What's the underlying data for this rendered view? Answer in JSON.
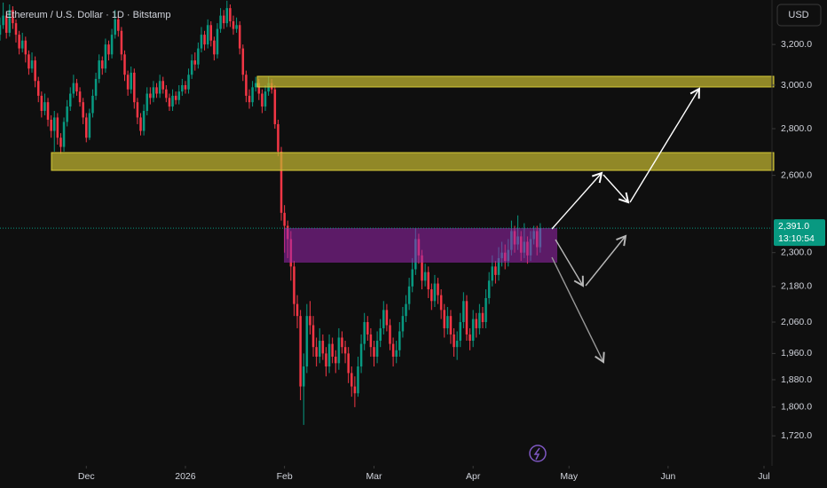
{
  "chart_data": {
    "type": "candlestick",
    "title": "Ethereum / U.S. Dollar · 1D · Bitstamp",
    "currency": "USD",
    "log_scale": true,
    "up_color": "#089981",
    "down_color": "#f23645",
    "xlim": [
      0,
      241.5
    ],
    "xticks": [
      {
        "value": 27,
        "label": "Dec"
      },
      {
        "value": 58,
        "label": "2026"
      },
      {
        "value": 89,
        "label": "Feb"
      },
      {
        "value": 117,
        "label": "Mar"
      },
      {
        "value": 148,
        "label": "Apr"
      },
      {
        "value": 178,
        "label": "May"
      },
      {
        "value": 209,
        "label": "Jun"
      },
      {
        "value": 239,
        "label": "Jul"
      }
    ],
    "ylim": [
      1640,
      3434
    ],
    "yticks": [
      {
        "value": 3200,
        "label": "3,200.0"
      },
      {
        "value": 3000,
        "label": "3,000.0"
      },
      {
        "value": 2800,
        "label": "2,800.0"
      },
      {
        "value": 2600,
        "label": "2,600.0"
      },
      {
        "value": 2300,
        "label": "2,300.0"
      },
      {
        "value": 2180,
        "label": "2,180.0"
      },
      {
        "value": 2060,
        "label": "2,060.0"
      },
      {
        "value": 1960,
        "label": "1,960.0"
      },
      {
        "value": 1880,
        "label": "1,880.0"
      },
      {
        "value": 1800,
        "label": "1,800.0"
      },
      {
        "value": 1720,
        "label": "1,720.0"
      }
    ],
    "last_price": {
      "value": 2391,
      "label": "2,391.0"
    },
    "countdown": "13:10:54",
    "open": [
      3250,
      3300,
      3350,
      3260,
      3380,
      3310,
      3250,
      3180,
      3220,
      3150,
      3080,
      3120,
      3020,
      2950,
      2880,
      2920,
      2840,
      2790,
      2850,
      2760,
      2720,
      2830,
      2900,
      2960,
      3010,
      2970,
      2920,
      2850,
      2760,
      2870,
      2950,
      3030,
      3120,
      3080,
      3200,
      3150,
      3250,
      3330,
      3270,
      3150,
      3050,
      2980,
      3060,
      2920,
      2850,
      2790,
      2880,
      2960,
      2940,
      2990,
      2960,
      3020,
      2980,
      2940,
      2900,
      2950,
      2930,
      2970,
      3000,
      2980,
      3050,
      3120,
      3100,
      3180,
      3250,
      3200,
      3300,
      3220,
      3150,
      3280,
      3350,
      3310,
      3390,
      3320,
      3280,
      3300,
      3180,
      3050,
      2950,
      2920,
      2990,
      3010,
      2960,
      2900,
      2970,
      3010,
      2980,
      2820,
      2700,
      2450,
      2400,
      2350,
      2250,
      2120,
      2080,
      1860,
      1920,
      2080,
      2050,
      1980,
      1950,
      2000,
      1960,
      1920,
      1990,
      1950,
      1930,
      2010,
      1980,
      1960,
      1900,
      1860,
      1840,
      1920,
      1990,
      2060,
      2020,
      1980,
      1950,
      2000,
      2040,
      2100,
      2050,
      1990,
      1950,
      1970,
      2030,
      2080,
      2120,
      2180,
      2240,
      2350,
      2290,
      2200,
      2230,
      2170,
      2130,
      2190,
      2150,
      2100,
      2040,
      2080,
      2020,
      1980,
      2000,
      2060,
      2130,
      2020,
      2000,
      2070,
      2040,
      2090,
      2060,
      2140,
      2200,
      2250,
      2220,
      2280,
      2300,
      2270,
      2310,
      2380,
      2330,
      2360,
      2300,
      2340,
      2290,
      2350,
      2380,
      2320
    ],
    "high": [
      3340,
      3420,
      3370,
      3410,
      3400,
      3330,
      3270,
      3260,
      3240,
      3170,
      3160,
      3140,
      3040,
      2970,
      2960,
      2940,
      2860,
      2880,
      2870,
      2780,
      2850,
      2930,
      2990,
      3050,
      3030,
      2990,
      2940,
      2870,
      2890,
      2980,
      3060,
      3150,
      3140,
      3230,
      3220,
      3280,
      3380,
      3350,
      3290,
      3170,
      3070,
      3090,
      3080,
      2940,
      2870,
      2910,
      2990,
      2990,
      3020,
      3010,
      3050,
      3040,
      3000,
      2960,
      2980,
      2970,
      3000,
      3030,
      3020,
      3080,
      3150,
      3160,
      3210,
      3290,
      3270,
      3330,
      3320,
      3240,
      3310,
      3390,
      3380,
      3430,
      3410,
      3350,
      3340,
      3320,
      3200,
      3070,
      2980,
      3020,
      3040,
      3030,
      2980,
      3000,
      3040,
      3030,
      3000,
      2840,
      2720,
      2480,
      2420,
      2380,
      2270,
      2150,
      2100,
      1960,
      2120,
      2130,
      2080,
      2010,
      2040,
      2020,
      1980,
      2020,
      2010,
      1970,
      2040,
      2030,
      2000,
      1980,
      1920,
      1890,
      1950,
      2020,
      2090,
      2080,
      2040,
      2000,
      2030,
      2070,
      2130,
      2120,
      2070,
      2010,
      2000,
      2060,
      2110,
      2150,
      2210,
      2280,
      2390,
      2370,
      2310,
      2260,
      2250,
      2190,
      2220,
      2210,
      2170,
      2120,
      2110,
      2100,
      2040,
      2030,
      2090,
      2160,
      2150,
      2040,
      2100,
      2090,
      2120,
      2110,
      2170,
      2230,
      2290,
      2270,
      2320,
      2340,
      2330,
      2350,
      2420,
      2400,
      2440,
      2380,
      2410,
      2360,
      2380,
      2400,
      2400,
      2410
    ],
    "low": [
      3220,
      3280,
      3230,
      3240,
      3280,
      3210,
      3150,
      3160,
      3110,
      3050,
      3060,
      2990,
      2920,
      2850,
      2860,
      2810,
      2760,
      2700,
      2730,
      2690,
      2700,
      2810,
      2880,
      2940,
      2950,
      2900,
      2820,
      2740,
      2750,
      2850,
      2930,
      3010,
      3050,
      3060,
      3120,
      3130,
      3230,
      3240,
      3120,
      3020,
      2950,
      2960,
      2890,
      2820,
      2770,
      2770,
      2860,
      2910,
      2920,
      2940,
      2940,
      2960,
      2920,
      2880,
      2880,
      2910,
      2910,
      2950,
      2960,
      2960,
      3030,
      3070,
      3080,
      3160,
      3170,
      3180,
      3190,
      3120,
      3130,
      3260,
      3280,
      3290,
      3290,
      3250,
      3260,
      3150,
      3020,
      2920,
      2890,
      2900,
      2970,
      2930,
      2870,
      2880,
      2950,
      2960,
      2800,
      2680,
      2420,
      2300,
      2280,
      2200,
      2080,
      2040,
      1820,
      1750,
      1900,
      2020,
      1950,
      1920,
      1930,
      1940,
      1890,
      1900,
      1930,
      1900,
      1910,
      1960,
      1930,
      1870,
      1830,
      1800,
      1830,
      1900,
      1970,
      2000,
      1950,
      1920,
      1930,
      1980,
      2020,
      2030,
      1970,
      1920,
      1930,
      1950,
      2010,
      2060,
      2100,
      2160,
      2220,
      2260,
      2170,
      2180,
      2140,
      2100,
      2110,
      2120,
      2070,
      2010,
      2020,
      1990,
      1950,
      1940,
      1980,
      2040,
      2000,
      1970,
      1980,
      2010,
      2020,
      2040,
      2040,
      2120,
      2180,
      2190,
      2200,
      2250,
      2240,
      2250,
      2290,
      2300,
      2310,
      2270,
      2280,
      2260,
      2270,
      2330,
      2290,
      2300
    ],
    "close": [
      3300,
      3350,
      3260,
      3380,
      3310,
      3250,
      3180,
      3220,
      3150,
      3080,
      3120,
      3020,
      2950,
      2880,
      2920,
      2840,
      2790,
      2850,
      2760,
      2720,
      2830,
      2900,
      2960,
      3010,
      2970,
      2920,
      2850,
      2760,
      2870,
      2950,
      3030,
      3120,
      3080,
      3200,
      3150,
      3250,
      3330,
      3270,
      3150,
      3050,
      2980,
      3060,
      2920,
      2850,
      2790,
      2880,
      2960,
      2940,
      2990,
      2960,
      3020,
      2980,
      2940,
      2900,
      2950,
      2930,
      2970,
      3000,
      2980,
      3050,
      3120,
      3100,
      3180,
      3250,
      3200,
      3300,
      3220,
      3150,
      3280,
      3350,
      3310,
      3390,
      3320,
      3280,
      3300,
      3180,
      3050,
      2950,
      2920,
      2990,
      3010,
      2960,
      2900,
      2970,
      3010,
      2980,
      2820,
      2700,
      2450,
      2400,
      2350,
      2250,
      2120,
      2080,
      1860,
      1920,
      2080,
      2050,
      1980,
      1950,
      2000,
      1960,
      1920,
      1990,
      1950,
      1930,
      2010,
      1980,
      1960,
      1900,
      1860,
      1840,
      1920,
      1990,
      2060,
      2020,
      1980,
      1950,
      2000,
      2040,
      2100,
      2050,
      1990,
      1950,
      1970,
      2030,
      2080,
      2120,
      2180,
      2240,
      2350,
      2290,
      2200,
      2230,
      2170,
      2130,
      2190,
      2150,
      2100,
      2040,
      2080,
      2020,
      1980,
      2000,
      2060,
      2130,
      2020,
      2000,
      2070,
      2040,
      2090,
      2060,
      2140,
      2200,
      2250,
      2220,
      2280,
      2300,
      2270,
      2310,
      2380,
      2330,
      2360,
      2300,
      2340,
      2290,
      2350,
      2380,
      2320,
      2391
    ]
  }
}
